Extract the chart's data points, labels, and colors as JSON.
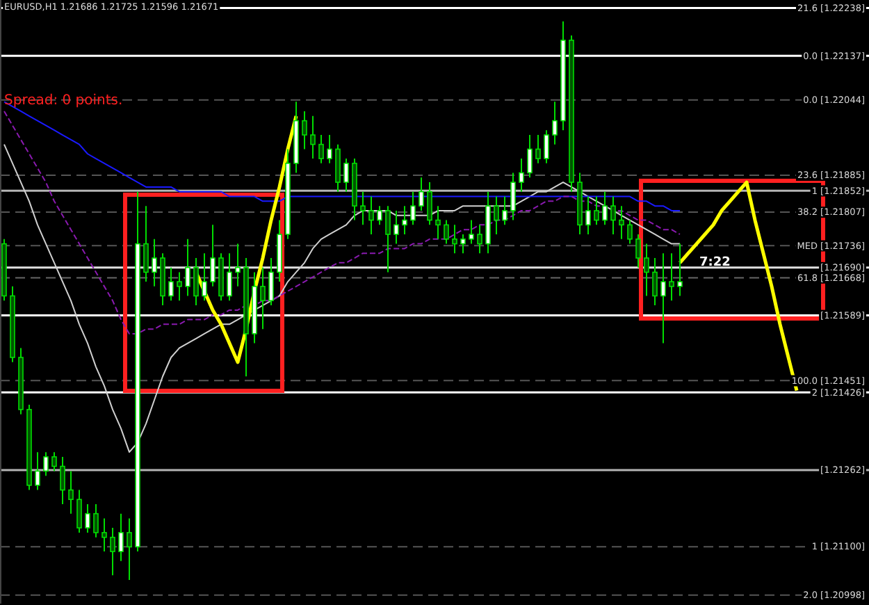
{
  "chart_data": {
    "type": "candlestick",
    "title": "EURUSD,H1  1.21686 1.21725 1.21596 1.21671",
    "color": "#00dd00",
    "ylim": [
      1.2098,
      1.22255
    ],
    "tick_labels": "y",
    "yticks": [
      {
        "value": 1.22238,
        "label": "21.6 [1.22238]"
      },
      {
        "value": 1.22137,
        "label": "0.0 [1.22137]"
      },
      {
        "value": 1.22044,
        "label": "0.0 [1.22044]"
      },
      {
        "value": 1.21885,
        "label": "23.6 [1.21885]"
      },
      {
        "value": 1.21852,
        "label": "1 [1.21852]"
      },
      {
        "value": 1.21807,
        "label": "38.2 [1.21807]"
      },
      {
        "value": 1.21736,
        "label": "MED [1.21736]"
      },
      {
        "value": 1.2169,
        "label": "[1.21690]"
      },
      {
        "value": 1.21668,
        "label": "61.8 [1.21668]"
      },
      {
        "value": 1.21589,
        "label": "[1.21589]"
      },
      {
        "value": 1.21451,
        "label": "100.0 [1.21451]"
      },
      {
        "value": 1.21426,
        "label": "2 [1.21426]"
      },
      {
        "value": 1.21262,
        "label": "[1.21262]"
      },
      {
        "value": 1.211,
        "label": "1 [1.21100]"
      },
      {
        "value": 1.20998,
        "label": "2.0 [1.20998]"
      }
    ],
    "grid": false,
    "annotations": [
      {
        "text": "Spread: 0 points."
      },
      {
        "text": "7:22"
      }
    ],
    "categories": [
      null,
      null,
      null,
      null,
      null,
      null,
      null,
      null,
      null,
      null,
      null,
      null,
      null,
      null,
      null,
      null,
      null,
      null,
      null,
      null,
      null,
      null,
      null,
      null,
      null,
      null,
      null,
      null,
      null,
      null,
      null,
      null,
      null,
      null,
      null,
      null,
      null,
      null,
      null,
      null,
      null,
      null,
      null,
      null,
      null,
      null,
      null,
      null,
      null,
      null,
      null,
      null,
      null,
      null,
      null,
      null,
      null,
      null,
      null,
      null,
      null,
      null,
      null,
      null,
      null,
      null,
      null,
      null,
      null,
      null,
      null,
      null,
      null,
      null,
      null,
      null,
      null,
      null,
      null,
      null,
      null,
      null,
      null,
      null,
      null,
      null,
      null,
      null,
      null,
      null,
      null,
      null,
      null,
      null,
      null,
      null,
      null
    ],
    "ohlc": [
      [
        1.2174,
        1.2175,
        1.2162,
        1.2163
      ],
      [
        1.2163,
        1.2165,
        1.2149,
        1.215
      ],
      [
        1.215,
        1.2152,
        1.2138,
        1.2139
      ],
      [
        1.2139,
        1.214,
        1.2122,
        1.2123
      ],
      [
        1.2123,
        1.213,
        1.2122,
        1.2126
      ],
      [
        1.2126,
        1.213,
        1.2125,
        1.2129
      ],
      [
        1.2129,
        1.213,
        1.2126,
        1.2127
      ],
      [
        1.2127,
        1.2129,
        1.2119,
        1.2122
      ],
      [
        1.2122,
        1.2126,
        1.2117,
        1.212
      ],
      [
        1.212,
        1.2122,
        1.2113,
        1.2114
      ],
      [
        1.2114,
        1.2119,
        1.2113,
        1.2117
      ],
      [
        1.2117,
        1.2119,
        1.2112,
        1.2113
      ],
      [
        1.2113,
        1.2116,
        1.2109,
        1.2112
      ],
      [
        1.2112,
        1.2114,
        1.2104,
        1.2109
      ],
      [
        1.2109,
        1.2117,
        1.2107,
        1.2113
      ],
      [
        1.2113,
        1.2116,
        1.2103,
        1.211
      ],
      [
        1.211,
        1.2185,
        1.2109,
        1.2174
      ],
      [
        1.2174,
        1.2182,
        1.2166,
        1.2168
      ],
      [
        1.2168,
        1.2175,
        1.2165,
        1.2171
      ],
      [
        1.2171,
        1.2172,
        1.2161,
        1.2163
      ],
      [
        1.2163,
        1.2169,
        1.2162,
        1.2166
      ],
      [
        1.2166,
        1.2168,
        1.2162,
        1.2165
      ],
      [
        1.2165,
        1.2175,
        1.2163,
        1.2169
      ],
      [
        1.2169,
        1.2171,
        1.2161,
        1.2163
      ],
      [
        1.2163,
        1.2172,
        1.2162,
        1.2166
      ],
      [
        1.2166,
        1.2178,
        1.2165,
        1.2171
      ],
      [
        1.2171,
        1.2172,
        1.2162,
        1.2163
      ],
      [
        1.2163,
        1.2172,
        1.2162,
        1.2168
      ],
      [
        1.2168,
        1.2174,
        1.2165,
        1.2169
      ],
      [
        1.2169,
        1.2171,
        1.2146,
        1.2155
      ],
      [
        1.2155,
        1.2168,
        1.2153,
        1.2165
      ],
      [
        1.2165,
        1.2169,
        1.2156,
        1.2162
      ],
      [
        1.2162,
        1.2171,
        1.2161,
        1.2168
      ],
      [
        1.2168,
        1.2179,
        1.2166,
        1.2176
      ],
      [
        1.2176,
        1.2194,
        1.2175,
        1.2191
      ],
      [
        1.2191,
        1.2204,
        1.2189,
        1.22
      ],
      [
        1.22,
        1.2202,
        1.2194,
        1.2197
      ],
      [
        1.2197,
        1.2201,
        1.2192,
        1.2195
      ],
      [
        1.2195,
        1.2197,
        1.2191,
        1.2192
      ],
      [
        1.2192,
        1.2197,
        1.2191,
        1.2194
      ],
      [
        1.2194,
        1.2195,
        1.2185,
        1.2187
      ],
      [
        1.2187,
        1.2192,
        1.2185,
        1.2191
      ],
      [
        1.2191,
        1.2192,
        1.2179,
        1.2182
      ],
      [
        1.2182,
        1.2185,
        1.2178,
        1.2181
      ],
      [
        1.2181,
        1.2184,
        1.2176,
        1.2179
      ],
      [
        1.2179,
        1.2182,
        1.2178,
        1.2181
      ],
      [
        1.2181,
        1.2182,
        1.2168,
        1.2176
      ],
      [
        1.2176,
        1.2181,
        1.2174,
        1.2178
      ],
      [
        1.2178,
        1.2182,
        1.2176,
        1.2179
      ],
      [
        1.2179,
        1.2185,
        1.2178,
        1.2182
      ],
      [
        1.2182,
        1.2188,
        1.2181,
        1.2185
      ],
      [
        1.2185,
        1.2187,
        1.2178,
        1.2179
      ],
      [
        1.2179,
        1.2182,
        1.2175,
        1.2178
      ],
      [
        1.2178,
        1.2179,
        1.2174,
        1.2175
      ],
      [
        1.2175,
        1.2178,
        1.2172,
        1.2174
      ],
      [
        1.2174,
        1.2176,
        1.2172,
        1.2175
      ],
      [
        1.2175,
        1.2179,
        1.2174,
        1.2176
      ],
      [
        1.2176,
        1.2178,
        1.2172,
        1.2174
      ],
      [
        1.2174,
        1.2185,
        1.2172,
        1.2182
      ],
      [
        1.2182,
        1.2184,
        1.2176,
        1.2179
      ],
      [
        1.2179,
        1.2184,
        1.2178,
        1.2181
      ],
      [
        1.2181,
        1.2189,
        1.2179,
        1.2187
      ],
      [
        1.2187,
        1.2192,
        1.2185,
        1.2189
      ],
      [
        1.2189,
        1.2197,
        1.2188,
        1.2194
      ],
      [
        1.2194,
        1.2197,
        1.2191,
        1.2192
      ],
      [
        1.2192,
        1.2198,
        1.2191,
        1.2197
      ],
      [
        1.2197,
        1.2204,
        1.2195,
        1.22
      ],
      [
        1.22,
        1.2221,
        1.2198,
        1.2217
      ],
      [
        1.2217,
        1.2218,
        1.2185,
        1.2187
      ],
      [
        1.2187,
        1.2189,
        1.2176,
        1.2178
      ],
      [
        1.2178,
        1.2184,
        1.2176,
        1.2181
      ],
      [
        1.2181,
        1.2184,
        1.2178,
        1.2179
      ],
      [
        1.2179,
        1.2185,
        1.2178,
        1.2182
      ],
      [
        1.2182,
        1.2184,
        1.2176,
        1.2179
      ],
      [
        1.2179,
        1.2182,
        1.2175,
        1.2178
      ],
      [
        1.2178,
        1.2179,
        1.2174,
        1.2175
      ],
      [
        1.2175,
        1.2176,
        1.2169,
        1.2171
      ],
      [
        1.2171,
        1.2174,
        1.2163,
        1.2168
      ],
      [
        1.2168,
        1.2171,
        1.2161,
        1.2163
      ],
      [
        1.2163,
        1.2172,
        1.2153,
        1.2166
      ],
      [
        1.2166,
        1.2172,
        1.2162,
        1.2165
      ],
      [
        1.2165,
        1.2174,
        1.2163,
        1.2166
      ],
      null,
      null,
      null,
      null,
      null,
      null,
      null,
      null,
      null,
      null,
      null,
      null,
      null,
      null,
      null
    ],
    "series": [
      {
        "type": "line",
        "color": "#d0d0d0",
        "values": [
          1.2195,
          1.2191,
          1.2187,
          1.2183,
          1.2178,
          1.2174,
          1.217,
          1.2166,
          1.2162,
          1.2157,
          1.2153,
          1.2148,
          1.2144,
          1.2139,
          1.2135,
          1.213,
          1.2132,
          1.2136,
          1.2141,
          1.2146,
          1.215,
          1.2152,
          1.2153,
          1.2154,
          1.2155,
          1.2156,
          1.2157,
          1.2157,
          1.2158,
          1.2159,
          1.216,
          1.2161,
          1.2162,
          1.2163,
          1.2166,
          1.2168,
          1.217,
          1.2173,
          1.2175,
          1.2176,
          1.2177,
          1.2178,
          1.218,
          1.2181,
          1.2181,
          1.2181,
          1.2181,
          1.218,
          1.218,
          1.218,
          1.218,
          1.218,
          1.2181,
          1.2181,
          1.2181,
          1.2182,
          1.2182,
          1.2182,
          1.2182,
          1.2182,
          1.2182,
          1.2182,
          1.2183,
          1.2184,
          1.2185,
          1.2185,
          1.2186,
          1.2187,
          1.2186,
          1.2185,
          1.2184,
          1.2183,
          1.2182,
          1.2181,
          1.218,
          1.2179,
          1.2178,
          1.2177,
          1.2176,
          1.2175,
          1.2174,
          1.2174,
          null,
          null,
          null,
          null,
          null,
          null,
          null,
          null,
          null,
          null,
          null,
          null,
          null,
          null,
          null
        ]
      },
      {
        "type": "line",
        "color": "#1a1aff",
        "values": [
          1.2204,
          1.2203,
          1.2202,
          1.2201,
          1.22,
          1.2199,
          1.2198,
          1.2197,
          1.2196,
          1.2195,
          1.2193,
          1.2192,
          1.2191,
          1.219,
          1.2189,
          1.2188,
          1.2187,
          1.2186,
          1.2186,
          1.2186,
          1.2186,
          1.2185,
          1.2185,
          1.2185,
          1.2185,
          1.2185,
          1.2185,
          1.2184,
          1.2184,
          1.2184,
          1.2184,
          1.2183,
          1.2183,
          1.2183,
          1.2184,
          1.2184,
          1.2184,
          1.2184,
          1.2184,
          1.2184,
          1.2184,
          1.2184,
          1.2184,
          1.2184,
          1.2184,
          1.2184,
          1.2184,
          1.2184,
          1.2184,
          1.2184,
          1.2184,
          1.2184,
          1.2184,
          1.2184,
          1.2184,
          1.2184,
          1.2184,
          1.2184,
          1.2184,
          1.2184,
          1.2184,
          1.2184,
          1.2184,
          1.2184,
          1.2184,
          1.2184,
          1.2184,
          1.2184,
          1.2184,
          1.2184,
          1.2184,
          1.2184,
          1.2184,
          1.2184,
          1.2184,
          1.2184,
          1.2183,
          1.2183,
          1.2182,
          1.2182,
          1.2181,
          1.2181,
          null,
          null,
          null,
          null,
          null,
          null,
          null,
          null,
          null,
          null,
          null,
          null,
          null,
          null,
          null
        ]
      },
      {
        "type": "line",
        "color": "#8a1ab0",
        "line_style": "dashed",
        "values": [
          1.2202,
          1.2199,
          1.2196,
          1.2193,
          1.219,
          1.2187,
          1.2183,
          1.218,
          1.2177,
          1.2174,
          1.2171,
          1.2168,
          1.2165,
          1.2162,
          1.2158,
          1.2155,
          1.2155,
          1.2156,
          1.2156,
          1.2157,
          1.2157,
          1.2157,
          1.2158,
          1.2158,
          1.2158,
          1.2159,
          1.2159,
          1.216,
          1.216,
          1.2161,
          1.2161,
          1.2162,
          1.2162,
          1.2163,
          1.2164,
          1.2165,
          1.2166,
          1.2167,
          1.2168,
          1.2169,
          1.217,
          1.217,
          1.2171,
          1.2172,
          1.2172,
          1.2172,
          1.2173,
          1.2173,
          1.2173,
          1.2174,
          1.2174,
          1.2175,
          1.2175,
          1.2175,
          1.2176,
          1.2177,
          1.2177,
          1.2178,
          1.2178,
          1.2179,
          1.2179,
          1.218,
          1.2181,
          1.2181,
          1.2182,
          1.2183,
          1.2183,
          1.2184,
          1.2184,
          1.2183,
          1.2183,
          1.2182,
          1.2182,
          1.2181,
          1.2181,
          1.218,
          1.2179,
          1.2179,
          1.2178,
          1.2177,
          1.2177,
          1.2176,
          null,
          null,
          null,
          null,
          null,
          null,
          null,
          null,
          null,
          null,
          null,
          null,
          null,
          null,
          null
        ]
      },
      {
        "type": "line",
        "color": "#ffff00",
        "values": [
          null,
          null,
          null,
          null,
          null,
          null,
          null,
          null,
          null,
          null,
          null,
          null,
          null,
          null,
          null,
          null,
          null,
          null,
          null,
          null,
          null,
          null,
          null,
          1.2168,
          1.2164,
          1.216,
          1.2157,
          1.2153,
          1.2149,
          1.2156,
          1.2164,
          1.2171,
          1.2179,
          1.2186,
          1.2194,
          1.2201,
          null,
          null,
          null,
          null,
          null,
          null,
          null,
          null,
          null,
          null,
          null,
          null,
          null,
          null,
          null,
          null,
          null,
          null,
          null,
          null,
          null,
          null,
          null,
          null,
          null,
          null,
          null,
          null,
          null,
          null,
          null,
          null,
          null,
          null,
          null,
          null,
          null,
          null,
          null,
          null,
          null,
          null,
          null,
          null,
          null,
          1.217,
          1.2172,
          1.2174,
          1.2176,
          1.2178,
          1.2181,
          1.2183,
          1.2185,
          1.2187,
          1.2179,
          1.2172,
          1.2165,
          1.2157,
          1.215,
          1.2143,
          null
        ]
      }
    ],
    "ref_lines": [
      {
        "axis": "y",
        "value": 1.22238,
        "color": "#ffffff",
        "line_style": "solid"
      },
      {
        "axis": "y",
        "value": 1.22137,
        "color": "#ffffff",
        "line_style": "solid"
      },
      {
        "axis": "y",
        "value": 1.22044,
        "color": "#555555",
        "line_style": "dashed"
      },
      {
        "axis": "y",
        "value": 1.21885,
        "color": "#555555",
        "line_style": "dashed"
      },
      {
        "axis": "y",
        "value": 1.21852,
        "color": "#b4b4b4",
        "line_style": "solid"
      },
      {
        "axis": "y",
        "value": 1.21807,
        "color": "#555555",
        "line_style": "dashed"
      },
      {
        "axis": "y",
        "value": 1.21736,
        "color": "#555555",
        "line_style": "dashed"
      },
      {
        "axis": "y",
        "value": 1.2169,
        "color": "#e0e0e0",
        "line_style": "solid"
      },
      {
        "axis": "y",
        "value": 1.21668,
        "color": "#666666",
        "line_style": "dashed"
      },
      {
        "axis": "y",
        "value": 1.21589,
        "color": "#ffffff",
        "line_style": "solid"
      },
      {
        "axis": "y",
        "value": 1.21451,
        "color": "#555555",
        "line_style": "dashed"
      },
      {
        "axis": "y",
        "value": 1.21426,
        "color": "#ffffff",
        "line_style": "solid"
      },
      {
        "axis": "y",
        "value": 1.21262,
        "color": "#b4b4b4",
        "line_style": "solid"
      },
      {
        "axis": "y",
        "value": 1.211,
        "color": "#555555",
        "line_style": "dashed"
      },
      {
        "axis": "y",
        "value": 1.20998,
        "color": "#555555",
        "line_style": "dashed"
      }
    ]
  }
}
